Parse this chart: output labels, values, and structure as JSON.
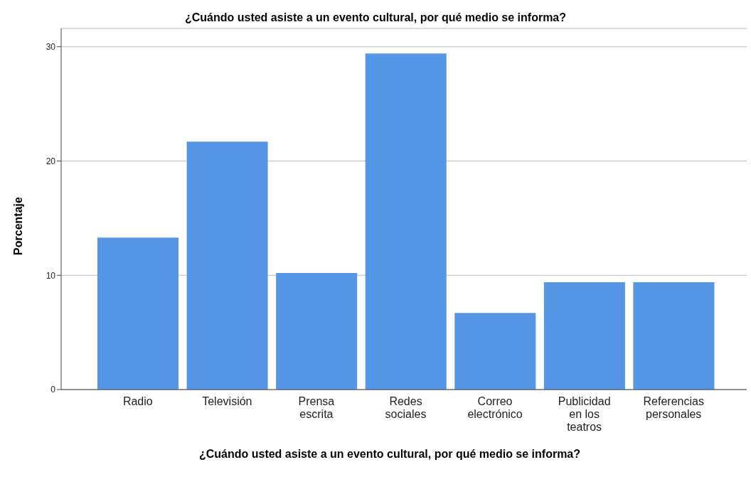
{
  "chart_data": {
    "type": "bar",
    "title": "¿Cuándo usted asiste a un evento cultural, por qué medio se informa?",
    "xlabel": "¿Cuándo usted asiste a un evento cultural, por qué medio se informa?",
    "ylabel": "Porcentaje",
    "categories": [
      "Radio",
      "Televisión",
      "Prensa escrita",
      "Redes sociales",
      "Correo electrónico",
      "Publicidad en los teatros",
      "Referencias personales"
    ],
    "values": [
      13.3,
      21.7,
      10.2,
      29.4,
      6.7,
      9.4,
      9.4
    ],
    "color": "#5596e6",
    "ylim": [
      0,
      31.6
    ],
    "yticks": [
      0,
      10,
      20,
      30
    ],
    "grid": "y",
    "legend": false
  }
}
